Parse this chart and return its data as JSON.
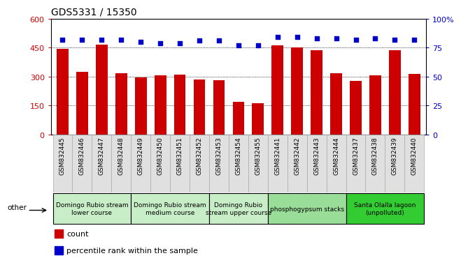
{
  "title": "GDS5331 / 15350",
  "categories": [
    "GSM832445",
    "GSM832446",
    "GSM832447",
    "GSM832448",
    "GSM832449",
    "GSM832450",
    "GSM832451",
    "GSM832452",
    "GSM832453",
    "GSM832454",
    "GSM832455",
    "GSM832441",
    "GSM832442",
    "GSM832443",
    "GSM832444",
    "GSM832437",
    "GSM832438",
    "GSM832439",
    "GSM832440"
  ],
  "counts": [
    445,
    325,
    465,
    318,
    295,
    305,
    310,
    285,
    283,
    168,
    163,
    462,
    450,
    438,
    318,
    278,
    305,
    435,
    312
  ],
  "percentiles": [
    82,
    82,
    82,
    82,
    80,
    79,
    79,
    81,
    81,
    77,
    77,
    84,
    84,
    83,
    83,
    82,
    83,
    82,
    82
  ],
  "bar_color": "#cc0000",
  "dot_color": "#0000cc",
  "ylim_left": [
    0,
    600
  ],
  "ylim_right": [
    0,
    100
  ],
  "yticks_left": [
    0,
    150,
    300,
    450,
    600
  ],
  "yticks_right": [
    0,
    25,
    50,
    75,
    100
  ],
  "ytick_labels_left": [
    "0",
    "150",
    "300",
    "450",
    "600"
  ],
  "ytick_labels_right": [
    "0",
    "25",
    "50",
    "75",
    "100%"
  ],
  "groups": [
    {
      "label": "Domingo Rubio stream\nlower course",
      "start": 0,
      "end": 4,
      "color": "#c8eec8"
    },
    {
      "label": "Domingo Rubio stream\nmedium course",
      "start": 4,
      "end": 8,
      "color": "#c8eec8"
    },
    {
      "label": "Domingo Rubio\nstream upper course",
      "start": 8,
      "end": 11,
      "color": "#c8eec8"
    },
    {
      "label": "phosphogypsum stacks",
      "start": 11,
      "end": 15,
      "color": "#99dd99"
    },
    {
      "label": "Santa Olalla lagoon\n(unpolluted)",
      "start": 15,
      "end": 19,
      "color": "#33cc33"
    }
  ],
  "legend_count_color": "#cc0000",
  "legend_pct_color": "#0000cc",
  "other_label": "other",
  "background_color": "#ffffff",
  "title_fontsize": 10,
  "tick_fontsize": 6.5,
  "group_fontsize": 6.5
}
